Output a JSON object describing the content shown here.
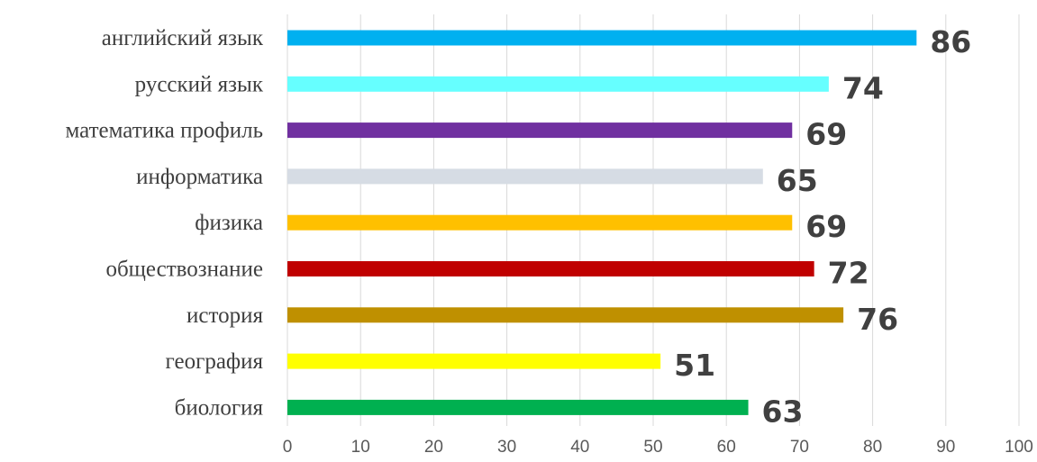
{
  "chart_data": {
    "type": "bar",
    "orientation": "horizontal",
    "title": "",
    "xlabel": "",
    "ylabel": "",
    "xlim": [
      0,
      100
    ],
    "ticks": [
      "0",
      "10",
      "20",
      "30",
      "40",
      "50",
      "60",
      "70",
      "80",
      "90",
      "100"
    ],
    "grid": true,
    "legend": "none",
    "categories": [
      "английский язык",
      "русский язык",
      "математика профиль",
      "информатика",
      "физика",
      "обществознание",
      "история",
      "география",
      "биология"
    ],
    "values": [
      86,
      74,
      69,
      65,
      69,
      72,
      76,
      51,
      63
    ],
    "colors": [
      "#00b0f0",
      "#66ffff",
      "#7030a0",
      "#d6dce4",
      "#ffc000",
      "#c00000",
      "#bf9000",
      "#ffff00",
      "#00b050"
    ]
  }
}
